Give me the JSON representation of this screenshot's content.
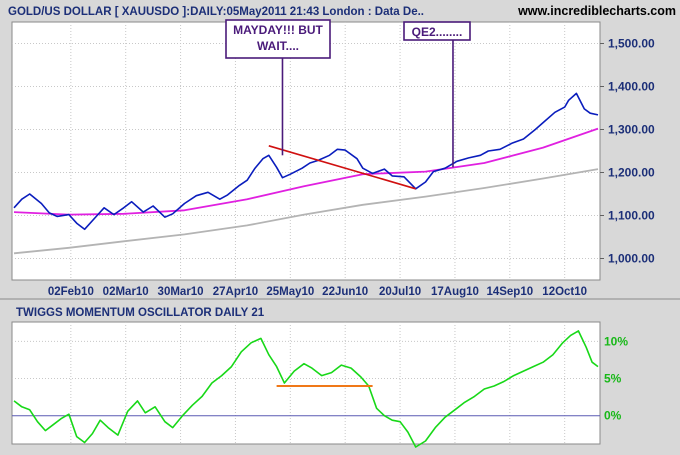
{
  "header": {
    "title": "GOLD/US DOLLAR [ XAUUSDO ]:DAILY:05May2011 21:43 London : Data De..",
    "site": "www.incrediblecharts.com"
  },
  "colors": {
    "background": "#d8d8d8",
    "plot_bg": "#ffffff",
    "grid": "#c8c8c8",
    "axis_text": "#1c2f78",
    "price": "#0a1dbd",
    "ma_fast": "#e020e0",
    "ma_slow": "#b4b4b4",
    "trendline": "#d01010",
    "annotation": "#4a1a7a",
    "oscillator": "#18d818",
    "osc_flat": "#f07818",
    "zero_line": "#5a5ab4"
  },
  "chart_data": [
    {
      "type": "line",
      "title": "GOLD/US DOLLAR [ XAUUSDO ]:DAILY:05May2011 21:43 London : Data De..",
      "x_ticks": [
        "02Feb10",
        "02Mar10",
        "30Mar10",
        "27Apr10",
        "25May10",
        "22Jun10",
        "20Jul10",
        "17Aug10",
        "14Sep10",
        "12Oct10"
      ],
      "x_range": [
        "2010-01-04",
        "2010-10-29"
      ],
      "ylim": [
        950,
        1550
      ],
      "y_ticks": [
        "1,000.00",
        "1,100.00",
        "1,200.00",
        "1,300.00",
        "1,400.00",
        "1,500.00"
      ],
      "y_tick_values": [
        1000,
        1100,
        1200,
        1300,
        1400,
        1500
      ],
      "grid": true,
      "series": [
        {
          "key": "price",
          "x": [
            "2010-01-04",
            "2010-01-08",
            "2010-01-12",
            "2010-01-18",
            "2010-01-22",
            "2010-01-26",
            "2010-02-01",
            "2010-02-05",
            "2010-02-09",
            "2010-02-15",
            "2010-02-19",
            "2010-02-24",
            "2010-03-01",
            "2010-03-05",
            "2010-03-11",
            "2010-03-16",
            "2010-03-22",
            "2010-03-26",
            "2010-04-01",
            "2010-04-07",
            "2010-04-13",
            "2010-04-19",
            "2010-04-23",
            "2010-04-29",
            "2010-05-03",
            "2010-05-07",
            "2010-05-11",
            "2010-05-14",
            "2010-05-18",
            "2010-05-21",
            "2010-05-25",
            "2010-05-31",
            "2010-06-04",
            "2010-06-08",
            "2010-06-14",
            "2010-06-18",
            "2010-06-22",
            "2010-06-28",
            "2010-07-01",
            "2010-07-06",
            "2010-07-12",
            "2010-07-16",
            "2010-07-22",
            "2010-07-28",
            "2010-08-02",
            "2010-08-06",
            "2010-08-12",
            "2010-08-18",
            "2010-08-24",
            "2010-08-30",
            "2010-09-03",
            "2010-09-09",
            "2010-09-15",
            "2010-09-21",
            "2010-09-27",
            "2010-10-01",
            "2010-10-07",
            "2010-10-12",
            "2010-10-14",
            "2010-10-18",
            "2010-10-22",
            "2010-10-25",
            "2010-10-29"
          ],
          "values": [
            1118,
            1138,
            1150,
            1128,
            1106,
            1098,
            1102,
            1082,
            1068,
            1098,
            1118,
            1102,
            1118,
            1132,
            1108,
            1122,
            1096,
            1104,
            1128,
            1146,
            1154,
            1138,
            1148,
            1170,
            1182,
            1210,
            1232,
            1240,
            1212,
            1188,
            1196,
            1210,
            1222,
            1228,
            1240,
            1254,
            1252,
            1232,
            1210,
            1198,
            1208,
            1192,
            1190,
            1162,
            1178,
            1202,
            1210,
            1226,
            1234,
            1240,
            1250,
            1254,
            1268,
            1278,
            1300,
            1316,
            1340,
            1352,
            1368,
            1384,
            1348,
            1338,
            1334
          ]
        },
        {
          "key": "ma_fast",
          "x": [
            "2010-01-04",
            "2010-02-01",
            "2010-03-01",
            "2010-04-01",
            "2010-05-03",
            "2010-06-01",
            "2010-07-01",
            "2010-08-02",
            "2010-09-01",
            "2010-10-01",
            "2010-10-29"
          ],
          "values": [
            1108,
            1102,
            1104,
            1112,
            1138,
            1168,
            1196,
            1202,
            1222,
            1258,
            1302
          ]
        },
        {
          "key": "ma_slow",
          "x": [
            "2010-01-04",
            "2010-02-01",
            "2010-03-01",
            "2010-04-01",
            "2010-05-03",
            "2010-06-01",
            "2010-07-01",
            "2010-08-02",
            "2010-09-01",
            "2010-10-01",
            "2010-10-29"
          ],
          "values": [
            1012,
            1025,
            1040,
            1056,
            1077,
            1102,
            1125,
            1144,
            1164,
            1186,
            1208
          ]
        },
        {
          "key": "trendline",
          "x": [
            "2010-05-14",
            "2010-07-28"
          ],
          "values": [
            1262,
            1162
          ]
        }
      ],
      "annotations": [
        {
          "key": "mayday",
          "lines": [
            "MAYDAY!!! BUT",
            "WAIT...."
          ],
          "x": "2010-05-21",
          "value": 1240
        },
        {
          "key": "qe2",
          "lines": [
            "QE2........"
          ],
          "x": "2010-08-16",
          "value": 1212
        }
      ]
    },
    {
      "type": "line",
      "title": "TWIGGS MOMENTUM OSCILLATOR DAILY 21",
      "ylim": [
        -3.8,
        12.6
      ],
      "y_ticks": [
        "0%",
        "5%",
        "10%"
      ],
      "y_tick_values": [
        0,
        5,
        10
      ],
      "grid": true,
      "series": [
        {
          "key": "oscillator",
          "x": [
            "2010-01-04",
            "2010-01-08",
            "2010-01-12",
            "2010-01-16",
            "2010-01-20",
            "2010-01-24",
            "2010-01-28",
            "2010-02-01",
            "2010-02-05",
            "2010-02-09",
            "2010-02-13",
            "2010-02-17",
            "2010-02-21",
            "2010-02-26",
            "2010-03-03",
            "2010-03-08",
            "2010-03-12",
            "2010-03-17",
            "2010-03-22",
            "2010-03-26",
            "2010-03-31",
            "2010-04-05",
            "2010-04-10",
            "2010-04-15",
            "2010-04-20",
            "2010-04-25",
            "2010-04-30",
            "2010-05-05",
            "2010-05-10",
            "2010-05-14",
            "2010-05-18",
            "2010-05-22",
            "2010-05-27",
            "2010-06-01",
            "2010-06-05",
            "2010-06-10",
            "2010-06-15",
            "2010-06-20",
            "2010-06-25",
            "2010-06-30",
            "2010-07-04",
            "2010-07-08",
            "2010-07-12",
            "2010-07-16",
            "2010-07-20",
            "2010-07-24",
            "2010-07-28",
            "2010-08-02",
            "2010-08-07",
            "2010-08-12",
            "2010-08-17",
            "2010-08-22",
            "2010-08-27",
            "2010-09-01",
            "2010-09-06",
            "2010-09-11",
            "2010-09-16",
            "2010-09-21",
            "2010-09-26",
            "2010-10-01",
            "2010-10-06",
            "2010-10-11",
            "2010-10-15",
            "2010-10-19",
            "2010-10-23",
            "2010-10-26",
            "2010-10-29"
          ],
          "values": [
            2.0,
            1.2,
            0.8,
            -0.8,
            -2.0,
            -1.2,
            -0.4,
            0.2,
            -2.8,
            -3.6,
            -2.4,
            -0.6,
            -1.6,
            -2.6,
            0.6,
            2.0,
            0.4,
            1.2,
            -0.8,
            -1.6,
            0.0,
            1.4,
            2.6,
            4.4,
            5.4,
            6.6,
            8.6,
            9.8,
            10.4,
            8.2,
            6.6,
            4.4,
            6.0,
            7.0,
            6.4,
            5.4,
            5.8,
            6.8,
            6.4,
            5.2,
            4.0,
            1.0,
            0.0,
            -0.6,
            -0.8,
            -2.2,
            -4.2,
            -3.4,
            -1.6,
            -0.2,
            0.8,
            1.8,
            2.6,
            3.6,
            4.0,
            4.6,
            5.4,
            6.0,
            6.6,
            7.2,
            8.2,
            9.8,
            10.8,
            11.4,
            9.2,
            7.2,
            6.6
          ]
        },
        {
          "key": "osc_flat",
          "x": [
            "2010-05-18",
            "2010-07-06"
          ],
          "values": [
            4.0,
            4.0
          ]
        }
      ]
    }
  ]
}
